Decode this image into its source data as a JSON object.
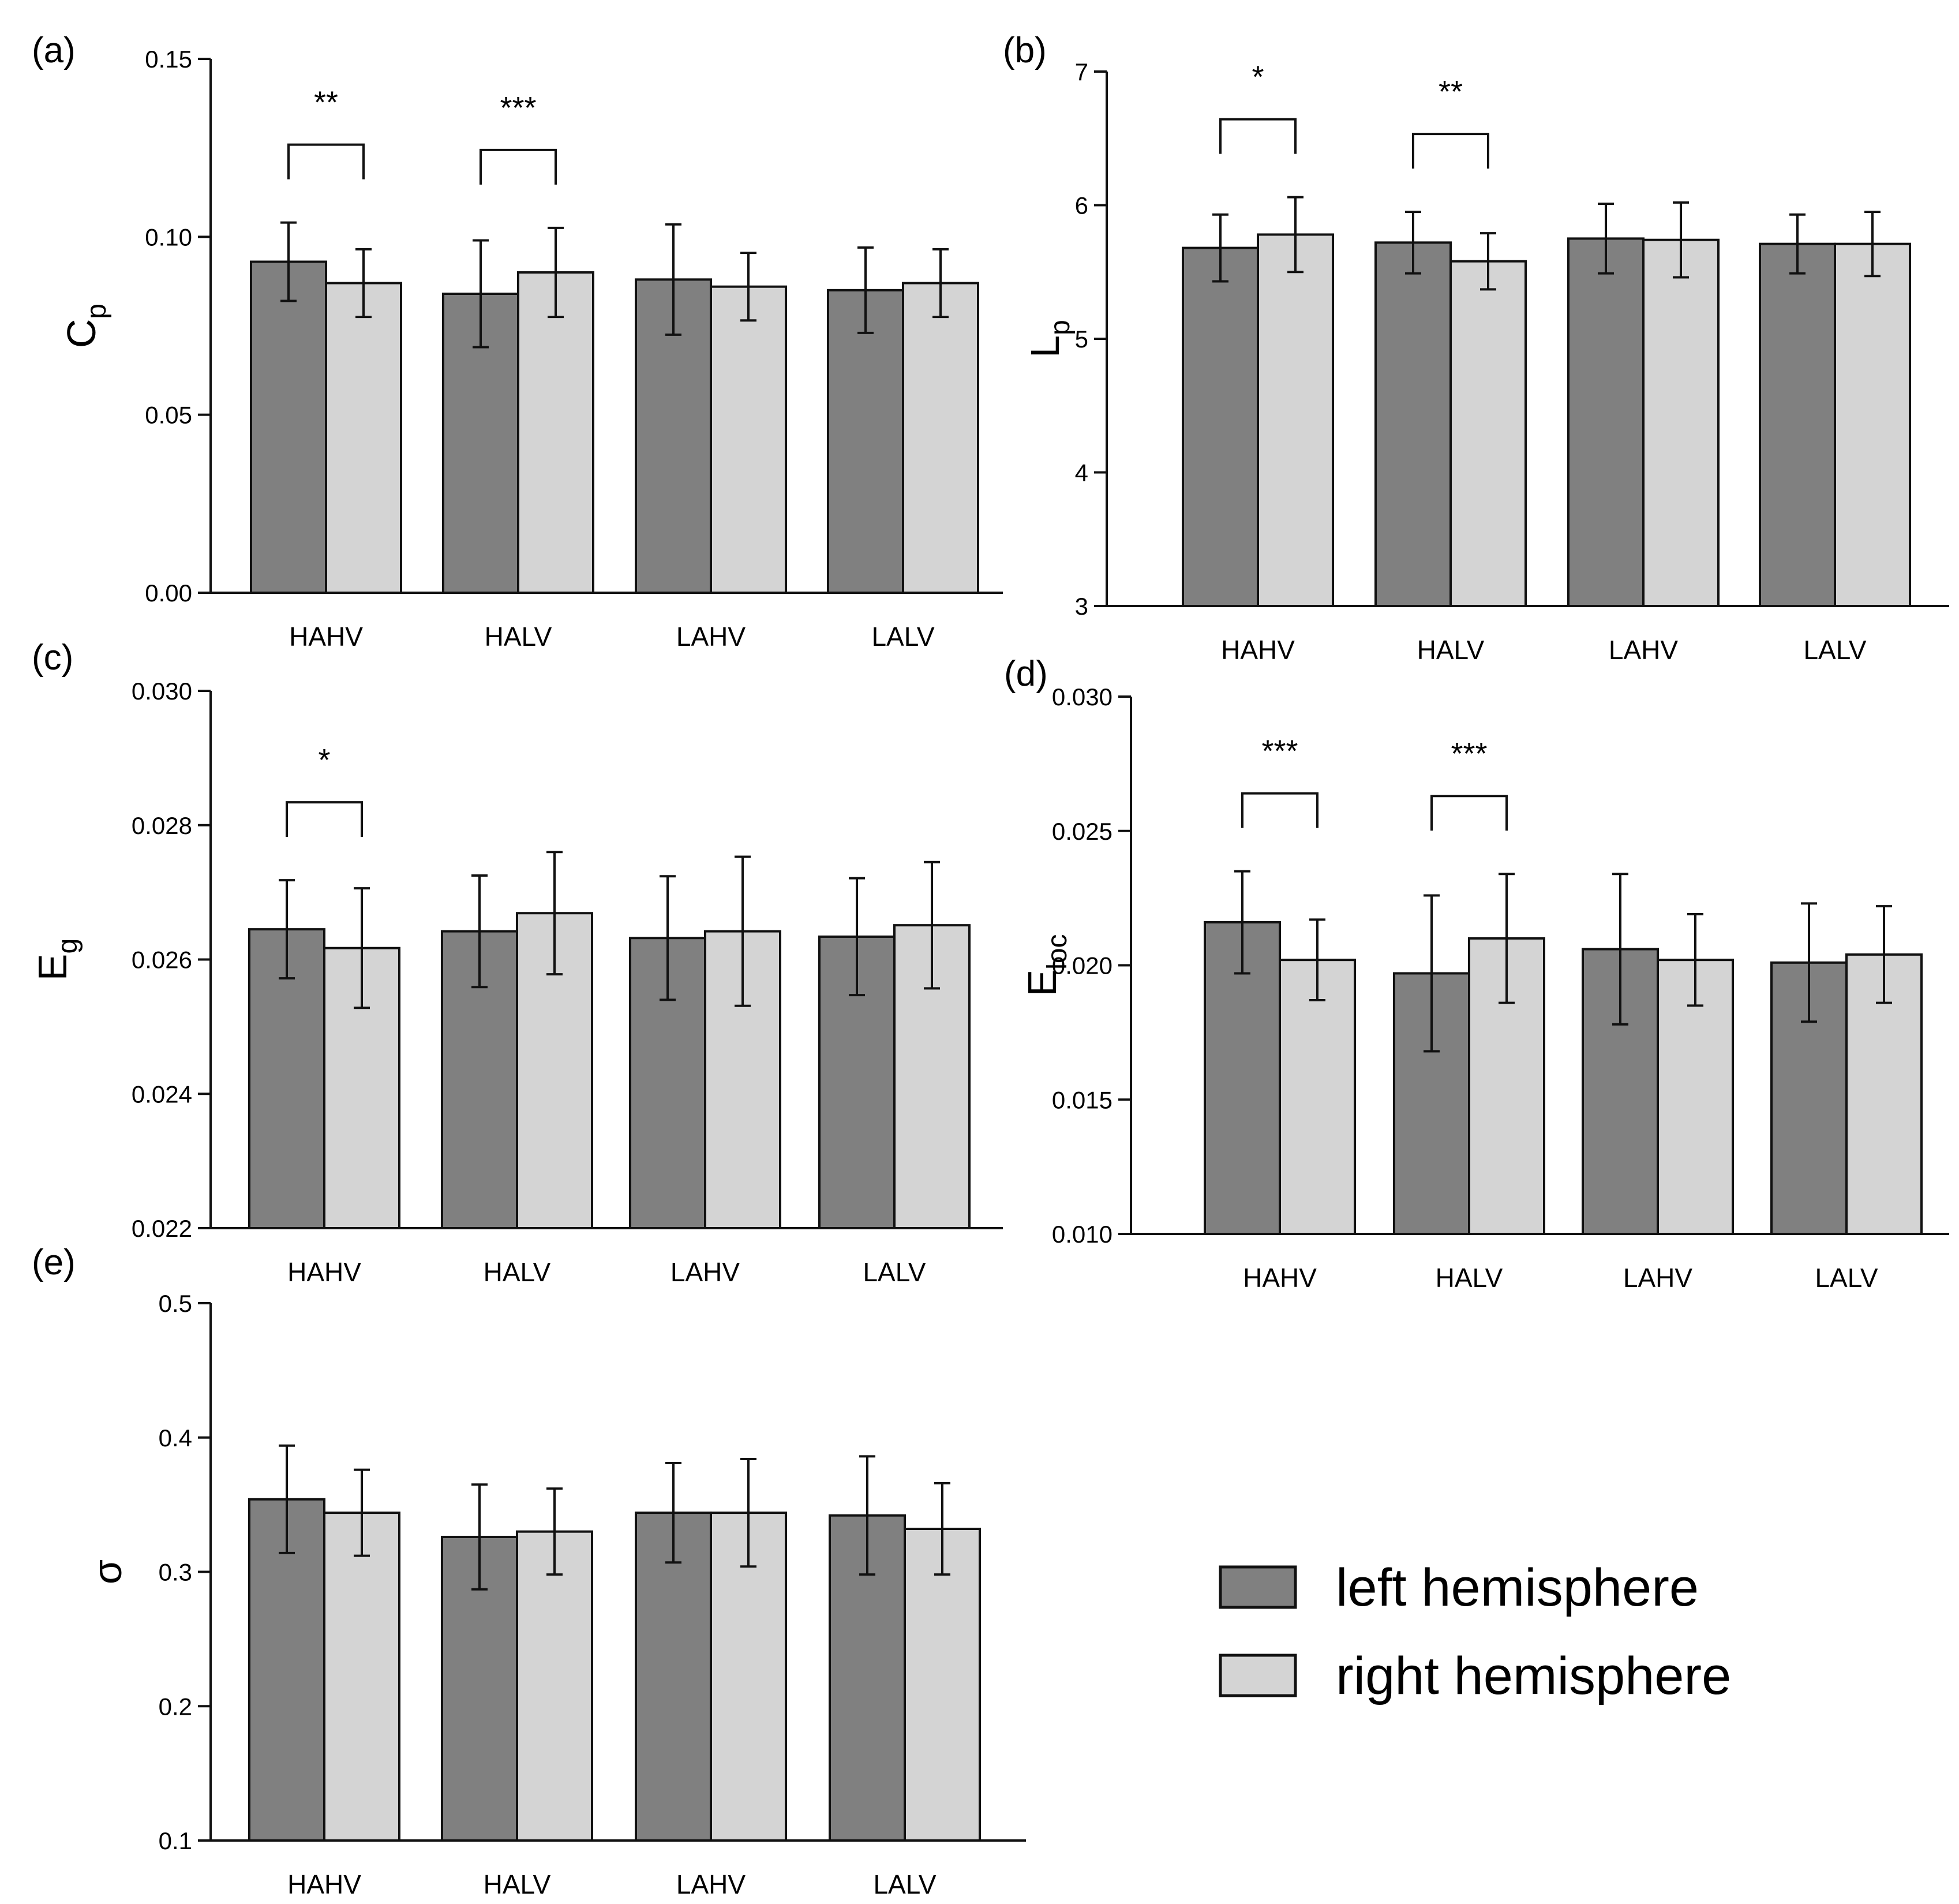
{
  "colors": {
    "left": "#808080",
    "right": "#d4d4d4",
    "stroke": "#111111"
  },
  "legend": {
    "left_label": "left hemisphere",
    "right_label": "right hemisphere"
  },
  "chart_data": [
    {
      "id": "a",
      "type": "bar",
      "panel_label": "(a)",
      "ylabel": "C",
      "ylabel_sub": "p",
      "ylim": [
        0,
        0.15
      ],
      "yticks": [
        "0.00",
        "0.05",
        "0.10",
        "0.15"
      ],
      "categories": [
        "HAHV",
        "HALV",
        "LAHV",
        "LALV"
      ],
      "series": [
        {
          "name": "left hemisphere",
          "values": [
            0.093,
            0.084,
            0.088,
            0.085
          ],
          "err": [
            0.011,
            0.015,
            0.0155,
            0.012
          ]
        },
        {
          "name": "right hemisphere",
          "values": [
            0.087,
            0.09,
            0.086,
            0.087
          ],
          "err": [
            0.0095,
            0.0125,
            0.0095,
            0.0095
          ]
        }
      ],
      "significance": [
        {
          "category": "HAHV",
          "label": "**"
        },
        {
          "category": "HALV",
          "label": "***"
        }
      ]
    },
    {
      "id": "b",
      "type": "bar",
      "panel_label": "(b)",
      "ylabel": "L",
      "ylabel_sub": "p",
      "ylim": [
        3,
        7
      ],
      "yticks": [
        "3",
        "4",
        "5",
        "6",
        "7"
      ],
      "categories": [
        "HAHV",
        "HALV",
        "LAHV",
        "LALV"
      ],
      "series": [
        {
          "name": "left hemisphere",
          "values": [
            5.68,
            5.72,
            5.75,
            5.71
          ],
          "err": [
            0.25,
            0.23,
            0.26,
            0.22
          ]
        },
        {
          "name": "right hemisphere",
          "values": [
            5.78,
            5.58,
            5.74,
            5.71
          ],
          "err": [
            0.28,
            0.21,
            0.28,
            0.24
          ]
        }
      ],
      "significance": [
        {
          "category": "HAHV",
          "label": "*"
        },
        {
          "category": "HALV",
          "label": "**"
        }
      ]
    },
    {
      "id": "c",
      "type": "bar",
      "panel_label": "(c)",
      "ylabel": "E",
      "ylabel_sub": "g",
      "ylim": [
        0.022,
        0.03
      ],
      "yticks": [
        "0.022",
        "0.024",
        "0.026",
        "0.028",
        "0.030"
      ],
      "categories": [
        "HAHV",
        "HALV",
        "LAHV",
        "LALV"
      ],
      "series": [
        {
          "name": "left hemisphere",
          "values": [
            0.02645,
            0.02642,
            0.02632,
            0.02634
          ],
          "err": [
            0.00073,
            0.00083,
            0.00092,
            0.00087
          ]
        },
        {
          "name": "right hemisphere",
          "values": [
            0.02617,
            0.02669,
            0.02642,
            0.02651
          ],
          "err": [
            0.00089,
            0.00091,
            0.00111,
            0.00094
          ]
        }
      ],
      "significance": [
        {
          "category": "HAHV",
          "label": "*"
        }
      ]
    },
    {
      "id": "d",
      "type": "bar",
      "panel_label": "(d)",
      "ylabel": "E",
      "ylabel_sub": "loc",
      "ylim": [
        0.01,
        0.03
      ],
      "yticks": [
        "0.010",
        "0.015",
        "0.020",
        "0.025",
        "0.030"
      ],
      "categories": [
        "HAHV",
        "HALV",
        "LAHV",
        "LALV"
      ],
      "series": [
        {
          "name": "left hemisphere",
          "values": [
            0.0216,
            0.0197,
            0.0206,
            0.0201
          ],
          "err": [
            0.0019,
            0.0029,
            0.0028,
            0.0022
          ]
        },
        {
          "name": "right hemisphere",
          "values": [
            0.0202,
            0.021,
            0.0202,
            0.0204
          ],
          "err": [
            0.0015,
            0.0024,
            0.0017,
            0.0018
          ]
        }
      ],
      "significance": [
        {
          "category": "HAHV",
          "label": "***"
        },
        {
          "category": "HALV",
          "label": "***"
        }
      ]
    },
    {
      "id": "e",
      "type": "bar",
      "panel_label": "(e)",
      "ylabel": "σ",
      "ylabel_sub": "",
      "ylim": [
        0.1,
        0.5
      ],
      "yticks": [
        "0.1",
        "0.2",
        "0.3",
        "0.4",
        "0.5"
      ],
      "categories": [
        "HAHV",
        "HALV",
        "LAHV",
        "LALV"
      ],
      "series": [
        {
          "name": "left hemisphere",
          "values": [
            0.354,
            0.326,
            0.344,
            0.342
          ],
          "err": [
            0.04,
            0.039,
            0.037,
            0.044
          ]
        },
        {
          "name": "right hemisphere",
          "values": [
            0.344,
            0.33,
            0.344,
            0.332
          ],
          "err": [
            0.032,
            0.032,
            0.04,
            0.034
          ]
        }
      ],
      "significance": []
    }
  ]
}
